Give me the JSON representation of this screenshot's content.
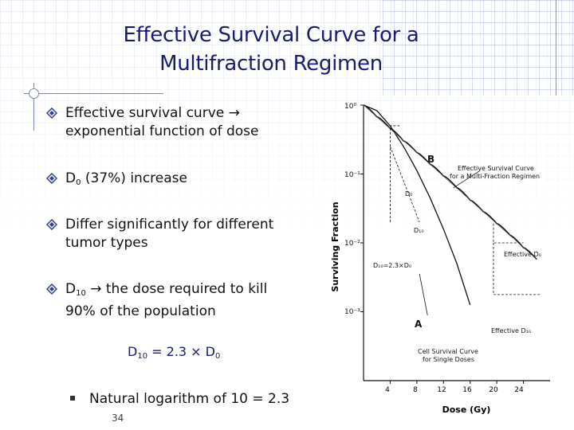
{
  "slide": {
    "title_lines": [
      "Effective Survival Curve for a",
      "Multifraction Regimen"
    ],
    "bullets": [
      {
        "lines": [
          "Effective survival curve →",
          "exponential function of dose"
        ]
      },
      {
        "prefix": "D",
        "sub": "0",
        "suffix": " (37%) increase"
      },
      {
        "lines": [
          "Differ significantly for different",
          "tumor types"
        ]
      },
      {
        "prefix": "D",
        "sub": "10",
        "suffix": " → the dose required to kill",
        "line2": "90% of the population"
      }
    ],
    "formula": {
      "a": "D",
      "a_sub": "10",
      "mid": " = 2.3 × D",
      "b_sub": "0"
    },
    "sub_bullet": "Natural logarithm of 10 = 2.3",
    "page_number": "34",
    "colors": {
      "title": "#1a1a70",
      "bullet_marker": "#2f3f8f",
      "accent": "#7a84a8"
    },
    "icons": [
      "diamond-bullet-icon",
      "square-bullet-icon"
    ]
  },
  "chart_data": {
    "type": "line",
    "xlabel": "Dose (Gy)",
    "ylabel": "Surviving Fraction",
    "x_ticks": [
      "4",
      "8",
      "12",
      "16",
      "20",
      "24"
    ],
    "y_ticks": [
      "10⁰",
      "10⁻¹",
      "10⁻²",
      "10⁻³"
    ],
    "xlim": [
      0,
      28
    ],
    "ylim_log10": [
      -4,
      0
    ],
    "series": [
      {
        "label": "A",
        "x": [
          0,
          2,
          4,
          6,
          8,
          10,
          12,
          14,
          16
        ],
        "y_log10": [
          0,
          -0.08,
          -0.3,
          -0.6,
          -0.95,
          -1.35,
          -1.8,
          -2.3,
          -2.9
        ]
      },
      {
        "label": "B",
        "x": [
          0,
          2,
          4,
          6,
          8,
          10,
          12,
          14,
          16,
          18,
          20,
          22,
          24,
          26
        ],
        "y_log10": [
          0,
          -0.17,
          -0.34,
          -0.52,
          -0.69,
          -0.86,
          -1.03,
          -1.2,
          -1.38,
          -1.55,
          -1.72,
          -1.89,
          -2.07,
          -2.24
        ]
      }
    ],
    "annotations": [
      "B",
      "Effective Survival Curve",
      "for a Multi-Fraction Regimen",
      "D₀",
      "D₁₀",
      "D₁₀=2.3×D₀",
      "Effective D₀",
      "Effective D₁₀",
      "A",
      "Cell Survival Curve",
      "for Single Doses"
    ]
  }
}
